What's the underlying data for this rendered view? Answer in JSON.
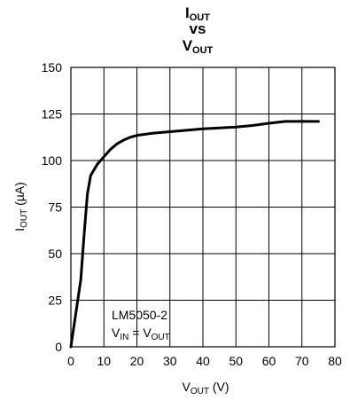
{
  "chart_data": {
    "type": "line",
    "title": {
      "line1": {
        "main": "I",
        "sub": "OUT"
      },
      "line2": "vs",
      "line3": {
        "main": "V",
        "sub": "OUT"
      }
    },
    "xlabel": {
      "main": "V",
      "sub": "OUT",
      "suffix": " (V)"
    },
    "ylabel": {
      "main": "I",
      "sub": "OUT",
      "suffix": " (µA)"
    },
    "xlim": [
      0,
      80
    ],
    "ylim": [
      0,
      150
    ],
    "x_ticks": [
      0,
      10,
      20,
      30,
      40,
      50,
      60,
      70,
      80
    ],
    "y_ticks": [
      0,
      25,
      50,
      75,
      100,
      125,
      150
    ],
    "grid": true,
    "annotation": {
      "line1": "LM5050-2",
      "line2": {
        "a_main": "V",
        "a_sub": "IN",
        "eq": " = ",
        "b_main": "V",
        "b_sub": "OUT"
      }
    },
    "series": [
      {
        "x": [
          0,
          1,
          2,
          3,
          4,
          5,
          6,
          8,
          10,
          12,
          14,
          16,
          18,
          20,
          25,
          30,
          40,
          50,
          55,
          60,
          65,
          70,
          75
        ],
        "y": [
          0,
          12,
          24,
          36,
          60,
          82,
          92,
          98,
          102,
          106,
          109,
          111,
          112.5,
          113.5,
          114.7,
          115.5,
          117,
          118,
          118.8,
          120,
          121,
          121,
          121
        ]
      }
    ],
    "colors": {
      "line": "#000000",
      "grid": "#000000"
    }
  }
}
